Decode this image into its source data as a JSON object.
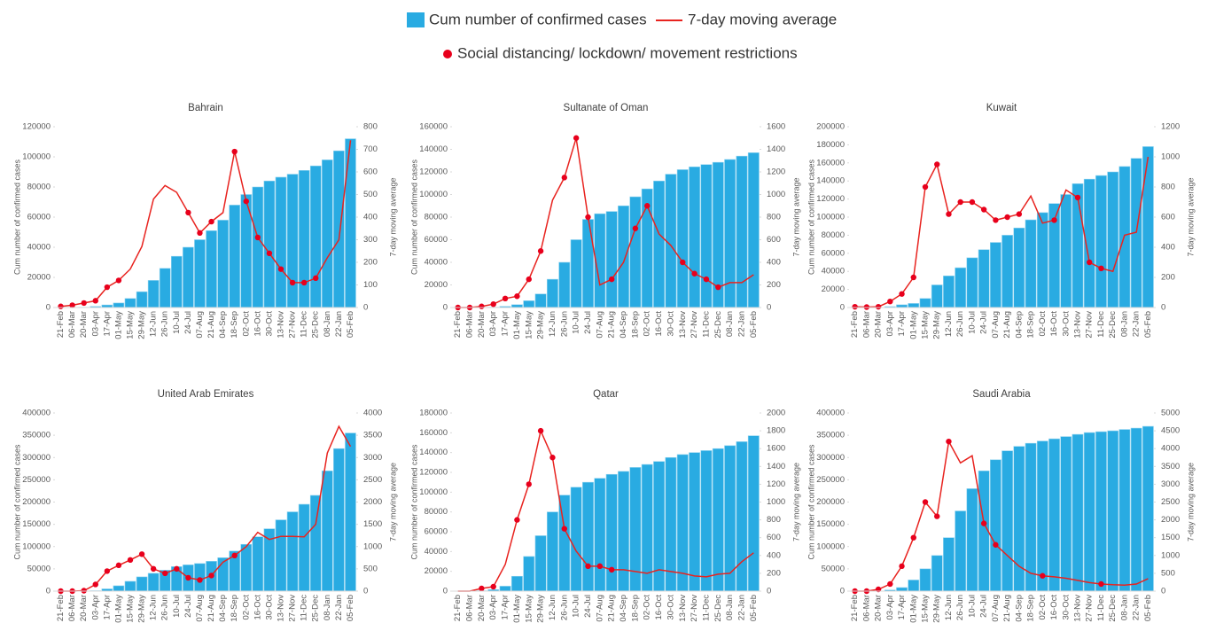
{
  "chart_data": [
    {
      "type": "bar-line",
      "title": "Bahrain",
      "ylabel": "Cum number of confirmed cases",
      "y2label": "7-day moving average",
      "categories": [
        "21-Feb",
        "06-Mar",
        "20-Mar",
        "03-Apr",
        "17-Apr",
        "01-May",
        "15-May",
        "29-May",
        "12-Jun",
        "26-Jun",
        "10-Jul",
        "24-Jul",
        "07-Aug",
        "21-Aug",
        "04-Sep",
        "18-Sep",
        "02-Oct",
        "16-Oct",
        "30-Oct",
        "13-Nov",
        "27-Nov",
        "11-Dec",
        "25-Dec",
        "08-Jan",
        "22-Jan",
        "05-Feb"
      ],
      "ylim": [
        0,
        120000
      ],
      "yticks": [
        0,
        20000,
        40000,
        60000,
        80000,
        100000,
        120000
      ],
      "y2lim": [
        0,
        800
      ],
      "y2ticks": [
        0,
        100,
        200,
        300,
        400,
        500,
        600,
        700,
        800
      ],
      "series": [
        {
          "name": "Cum number of confirmed cases",
          "type": "bar",
          "color": "#29abe2",
          "values": [
            0,
            0,
            200,
            700,
            1700,
            3000,
            6000,
            10500,
            18000,
            26000,
            34000,
            40000,
            45000,
            51000,
            58000,
            68000,
            75000,
            80000,
            84000,
            86500,
            88500,
            91000,
            94000,
            98000,
            104000,
            112000
          ]
        },
        {
          "name": "7-day moving average",
          "type": "line",
          "axis": "y2",
          "color": "#e8231f",
          "values": [
            5,
            10,
            20,
            30,
            90,
            120,
            170,
            270,
            480,
            540,
            510,
            420,
            330,
            380,
            420,
            690,
            470,
            310,
            240,
            170,
            110,
            110,
            130,
            220,
            300,
            740
          ]
        },
        {
          "name": "Social distancing/ lockdown/ movement restrictions",
          "type": "scatter",
          "axis": "y2",
          "color": "#e8001c",
          "values": [
            5,
            10,
            20,
            30,
            90,
            120,
            null,
            null,
            null,
            null,
            null,
            420,
            330,
            380,
            null,
            690,
            470,
            310,
            240,
            170,
            110,
            110,
            130,
            null,
            null,
            null
          ]
        }
      ]
    },
    {
      "type": "bar-line",
      "title": "Sultanate of Oman",
      "ylabel": "Cum number of confirmed cases",
      "y2label": "7-day moving average",
      "categories": [
        "21-Feb",
        "06-Mar",
        "20-Mar",
        "03-Apr",
        "17-Apr",
        "01-May",
        "15-May",
        "29-May",
        "12-Jun",
        "26-Jun",
        "10-Jul",
        "24-Jul",
        "07-Aug",
        "21-Aug",
        "04-Sep",
        "18-Sep",
        "02-Oct",
        "16-Oct",
        "30-Oct",
        "13-Nov",
        "27-Nov",
        "11-Dec",
        "25-Dec",
        "08-Jan",
        "22-Jan",
        "05-Feb"
      ],
      "ylim": [
        0,
        160000
      ],
      "yticks": [
        0,
        20000,
        40000,
        60000,
        80000,
        100000,
        120000,
        140000,
        160000
      ],
      "y2lim": [
        0,
        1600
      ],
      "y2ticks": [
        0,
        200,
        400,
        600,
        800,
        1000,
        1200,
        1400,
        1600
      ],
      "series": [
        {
          "type": "bar",
          "color": "#29abe2",
          "values": [
            0,
            0,
            100,
            300,
            1000,
            2500,
            6000,
            12000,
            25000,
            40000,
            60000,
            78000,
            83000,
            85000,
            90000,
            98000,
            105000,
            112000,
            118000,
            122000,
            124500,
            126500,
            128500,
            131000,
            134000,
            137000
          ]
        },
        {
          "type": "line",
          "axis": "y2",
          "color": "#e8231f",
          "values": [
            0,
            0,
            10,
            30,
            80,
            100,
            250,
            500,
            950,
            1150,
            1500,
            800,
            200,
            250,
            400,
            700,
            900,
            650,
            550,
            400,
            300,
            250,
            180,
            220,
            220,
            290
          ]
        },
        {
          "type": "scatter",
          "axis": "y2",
          "color": "#e8001c",
          "values": [
            0,
            0,
            10,
            30,
            80,
            100,
            250,
            500,
            null,
            1150,
            1500,
            800,
            null,
            250,
            null,
            700,
            900,
            null,
            null,
            400,
            300,
            250,
            180,
            null,
            null,
            null
          ]
        }
      ]
    },
    {
      "type": "bar-line",
      "title": "Kuwait",
      "ylabel": "Cum number of confirmed cases",
      "y2label": "7-day moving average",
      "categories": [
        "21-Feb",
        "06-Mar",
        "20-Mar",
        "03-Apr",
        "17-Apr",
        "01-May",
        "15-May",
        "29-May",
        "12-Jun",
        "26-Jun",
        "10-Jul",
        "24-Jul",
        "07-Aug",
        "21-Aug",
        "04-Sep",
        "18-Sep",
        "02-Oct",
        "16-Oct",
        "30-Oct",
        "13-Nov",
        "27-Nov",
        "11-Dec",
        "25-Dec",
        "08-Jan",
        "22-Jan",
        "05-Feb"
      ],
      "ylim": [
        0,
        200000
      ],
      "yticks": [
        0,
        20000,
        40000,
        60000,
        80000,
        100000,
        120000,
        140000,
        160000,
        180000,
        200000
      ],
      "y2lim": [
        0,
        1200
      ],
      "y2ticks": [
        0,
        200,
        400,
        600,
        800,
        1000,
        1200
      ],
      "series": [
        {
          "type": "bar",
          "color": "#29abe2",
          "values": [
            0,
            0,
            200,
            1000,
            3000,
            4500,
            10000,
            25000,
            35000,
            44000,
            55000,
            64000,
            72000,
            80000,
            88000,
            97000,
            105000,
            115000,
            125000,
            137000,
            142000,
            146000,
            150000,
            156000,
            165000,
            178000
          ]
        },
        {
          "type": "line",
          "axis": "y2",
          "color": "#e8231f",
          "values": [
            5,
            3,
            5,
            40,
            90,
            200,
            800,
            950,
            620,
            700,
            700,
            650,
            580,
            600,
            620,
            740,
            560,
            580,
            780,
            730,
            300,
            260,
            240,
            480,
            500,
            1000
          ]
        },
        {
          "type": "scatter",
          "axis": "y2",
          "color": "#e8001c",
          "values": [
            5,
            3,
            5,
            40,
            90,
            200,
            800,
            950,
            620,
            700,
            700,
            650,
            580,
            600,
            620,
            null,
            null,
            580,
            null,
            730,
            300,
            260,
            null,
            null,
            null,
            null
          ]
        }
      ]
    },
    {
      "type": "bar-line",
      "title": "United Arab Emirates",
      "ylabel": "Cum number of confirmed cases",
      "y2label": "7-day moving average",
      "categories": [
        "21-Feb",
        "06-Mar",
        "20-Mar",
        "03-Apr",
        "17-Apr",
        "01-May",
        "15-May",
        "29-May",
        "12-Jun",
        "26-Jun",
        "10-Jul",
        "24-Jul",
        "07-Aug",
        "21-Aug",
        "04-Sep",
        "18-Sep",
        "02-Oct",
        "16-Oct",
        "30-Oct",
        "13-Nov",
        "27-Nov",
        "11-Dec",
        "25-Dec",
        "08-Jan",
        "22-Jan",
        "05-Feb"
      ],
      "ylim": [
        0,
        400000
      ],
      "yticks": [
        0,
        50000,
        100000,
        150000,
        200000,
        250000,
        300000,
        350000,
        400000
      ],
      "y2lim": [
        0,
        4000
      ],
      "y2ticks": [
        0,
        500,
        1000,
        1500,
        2000,
        2500,
        3000,
        3500,
        4000
      ],
      "series": [
        {
          "type": "bar",
          "color": "#29abe2",
          "values": [
            0,
            0,
            100,
            1000,
            5000,
            12000,
            22000,
            32000,
            40000,
            47000,
            55000,
            59000,
            62000,
            67000,
            75000,
            90000,
            105000,
            122000,
            140000,
            160000,
            178000,
            195000,
            215000,
            270000,
            320000,
            355000
          ]
        },
        {
          "type": "line",
          "axis": "y2",
          "color": "#e8231f",
          "values": [
            0,
            0,
            10,
            150,
            450,
            580,
            700,
            830,
            500,
            400,
            500,
            300,
            250,
            350,
            650,
            800,
            1000,
            1320,
            1160,
            1230,
            1230,
            1220,
            1500,
            3100,
            3700,
            3250
          ]
        },
        {
          "type": "scatter",
          "axis": "y2",
          "color": "#e8001c",
          "values": [
            0,
            0,
            10,
            150,
            450,
            580,
            700,
            830,
            500,
            400,
            500,
            300,
            250,
            350,
            null,
            800,
            null,
            null,
            null,
            null,
            null,
            null,
            null,
            null,
            null,
            null
          ]
        }
      ]
    },
    {
      "type": "bar-line",
      "title": "Qatar",
      "ylabel": "Cum number of confirmed cases",
      "y2label": "7-day moving average",
      "categories": [
        "21-Feb",
        "06-Mar",
        "20-Mar",
        "03-Apr",
        "17-Apr",
        "01-May",
        "15-May",
        "29-May",
        "12-Jun",
        "26-Jun",
        "10-Jul",
        "24-Jul",
        "07-Aug",
        "21-Aug",
        "04-Sep",
        "18-Sep",
        "02-Oct",
        "16-Oct",
        "30-Oct",
        "13-Nov",
        "27-Nov",
        "11-Dec",
        "25-Dec",
        "08-Jan",
        "22-Jan",
        "05-Feb"
      ],
      "ylim": [
        0,
        180000
      ],
      "yticks": [
        0,
        20000,
        40000,
        60000,
        80000,
        100000,
        120000,
        140000,
        160000,
        180000
      ],
      "y2lim": [
        0,
        2000
      ],
      "y2ticks": [
        0,
        200,
        400,
        600,
        800,
        1000,
        1200,
        1400,
        1600,
        1800,
        2000
      ],
      "series": [
        {
          "type": "bar",
          "color": "#29abe2",
          "values": [
            0,
            0,
            400,
            1500,
            5000,
            15000,
            35000,
            56000,
            80000,
            97000,
            105000,
            110000,
            114000,
            118000,
            121000,
            125000,
            128000,
            131000,
            135000,
            138000,
            140000,
            142000,
            144000,
            147000,
            151000,
            157000
          ]
        },
        {
          "type": "line",
          "axis": "y2",
          "color": "#e8231f",
          "values": [
            0,
            0,
            30,
            50,
            300,
            800,
            1200,
            1800,
            1500,
            700,
            450,
            280,
            280,
            240,
            240,
            220,
            200,
            240,
            220,
            200,
            170,
            160,
            190,
            200,
            330,
            430
          ]
        },
        {
          "type": "scatter",
          "axis": "y2",
          "color": "#e8001c",
          "values": [
            null,
            null,
            30,
            50,
            null,
            800,
            1200,
            1800,
            1500,
            700,
            null,
            280,
            280,
            240,
            null,
            null,
            null,
            null,
            null,
            null,
            null,
            null,
            null,
            null,
            null,
            null
          ]
        }
      ]
    },
    {
      "type": "bar-line",
      "title": "Saudi Arabia",
      "ylabel": "Cum number of confirmed cases",
      "y2label": "7-day moving average",
      "categories": [
        "21-Feb",
        "06-Mar",
        "20-Mar",
        "03-Apr",
        "17-Apr",
        "01-May",
        "15-May",
        "29-May",
        "12-Jun",
        "26-Jun",
        "10-Jul",
        "24-Jul",
        "07-Aug",
        "21-Aug",
        "04-Sep",
        "18-Sep",
        "02-Oct",
        "16-Oct",
        "30-Oct",
        "13-Nov",
        "27-Nov",
        "11-Dec",
        "25-Dec",
        "08-Jan",
        "22-Jan",
        "05-Feb"
      ],
      "ylim": [
        0,
        400000
      ],
      "yticks": [
        0,
        50000,
        100000,
        150000,
        200000,
        250000,
        300000,
        350000,
        400000
      ],
      "y2lim": [
        0,
        5000
      ],
      "y2ticks": [
        0,
        500,
        1000,
        1500,
        2000,
        2500,
        3000,
        3500,
        4000,
        4500,
        5000
      ],
      "series": [
        {
          "type": "bar",
          "color": "#29abe2",
          "values": [
            0,
            0,
            300,
            2500,
            8000,
            25000,
            50000,
            80000,
            120000,
            180000,
            230000,
            270000,
            295000,
            315000,
            325000,
            332000,
            337000,
            342000,
            347000,
            352000,
            356000,
            358000,
            360000,
            363000,
            366000,
            370000
          ]
        },
        {
          "type": "line",
          "axis": "y2",
          "color": "#e8231f",
          "values": [
            0,
            0,
            50,
            200,
            700,
            1500,
            2500,
            2100,
            4200,
            3600,
            3800,
            1900,
            1300,
            1000,
            700,
            500,
            430,
            400,
            360,
            300,
            240,
            200,
            180,
            170,
            200,
            350
          ]
        },
        {
          "type": "scatter",
          "axis": "y2",
          "color": "#e8001c",
          "values": [
            0,
            0,
            50,
            200,
            700,
            1500,
            2500,
            2100,
            4200,
            null,
            null,
            1900,
            1300,
            null,
            null,
            null,
            430,
            null,
            null,
            null,
            null,
            200,
            null,
            null,
            null,
            null
          ]
        }
      ]
    }
  ]
}
